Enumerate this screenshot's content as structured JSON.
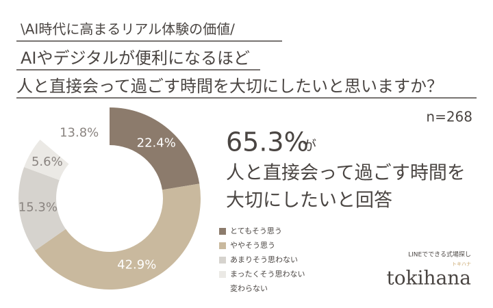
{
  "header": {
    "tagline": "\\AI時代に高まるリアル体験の価値/",
    "title_lines": [
      "AIやデジタルが便利になるほど",
      "人と直接会って過ごす時間を大切にしたいと思いますか？"
    ]
  },
  "chart_data": {
    "type": "donut",
    "sample_size": "n=268",
    "categories": [
      "とてもそう思う",
      "ややそう思う",
      "あまりそう思わない",
      "まったくそう思わない",
      "変わらない"
    ],
    "values": [
      22.4,
      42.9,
      15.3,
      5.6,
      13.8
    ],
    "value_labels": [
      "22.4%",
      "42.9%",
      "15.3%",
      "5.6%",
      "13.8%"
    ],
    "colors": [
      "#8c7b6c",
      "#c9b99e",
      "#d6d3ce",
      "#ebe9e5",
      "#ffffff"
    ],
    "legend": "bottom-right"
  },
  "highlight": {
    "percent": "65.3%",
    "suffix": "が",
    "lines": [
      "人と直接会って過ごす時間を",
      "大切にしたいと回答"
    ]
  },
  "footer": {
    "service": "LINEでできる式場探し",
    "brand": "tokihana",
    "brand_kana": "トキハナ"
  }
}
